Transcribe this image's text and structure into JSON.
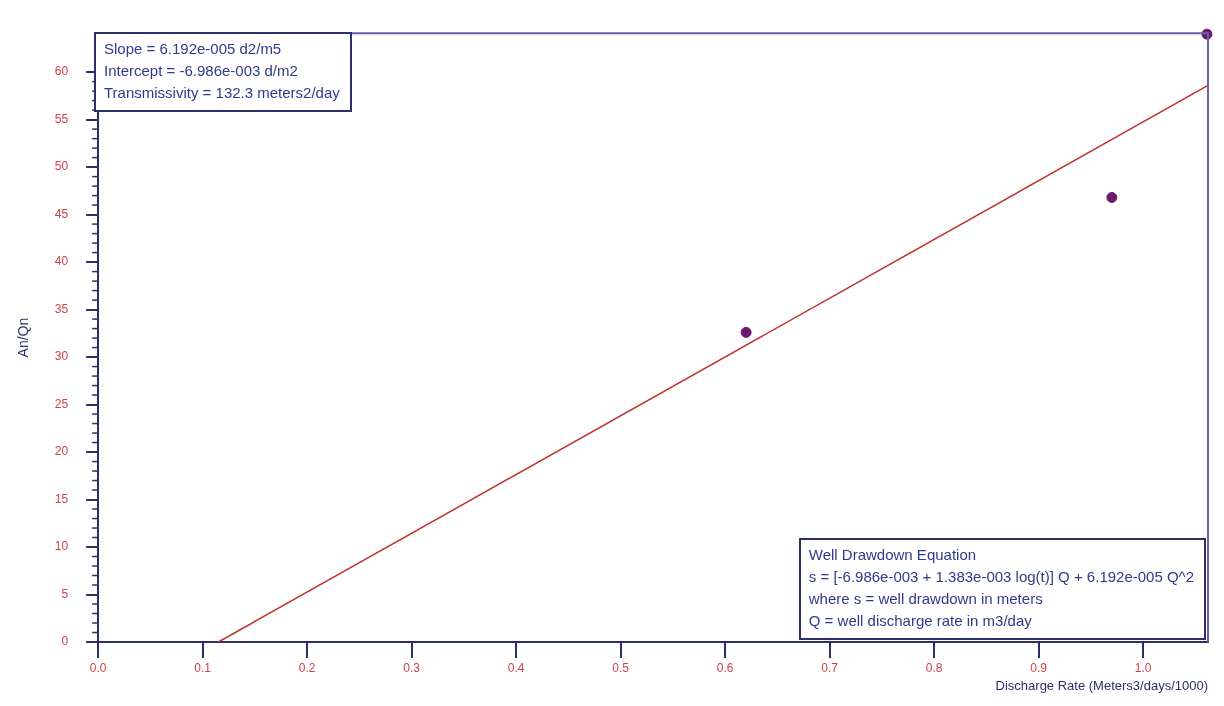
{
  "chart_data": {
    "type": "scatter",
    "xlabel": "Discharge Rate (Meters3/days/1000)",
    "ylabel": "An/Qn",
    "xlim": [
      0,
      1.062
    ],
    "ylim": [
      0,
      64.1
    ],
    "xticks": [
      {
        "value": 0,
        "label": "0.0"
      },
      0.1,
      0.2,
      0.3,
      0.4,
      0.5,
      0.6,
      0.7,
      0.8,
      0.9,
      {
        "value": 1,
        "label": "1.0"
      }
    ],
    "yticks": [
      0,
      5,
      10,
      15,
      20,
      25,
      30,
      35,
      40,
      45,
      50,
      55,
      60
    ],
    "grid": false,
    "legend": false,
    "marker": "circle",
    "series": [
      {
        "color": "#6b1a6b",
        "x": [
          0.62,
          0.97,
          1.061
        ],
        "values": [
          32.6,
          46.8,
          64.0
        ]
      },
      {
        "type": "line",
        "color": "#c0302c",
        "marker": "none",
        "x": [
          0.115,
          1.062
        ],
        "values": [
          0,
          58.6
        ]
      }
    ],
    "annotations": [
      "Slope = 6.192e-005 d2/m5\nIntercept = -6.986e-003 d/m2\nTransmissivity = 132.3 meters2/day",
      "Well Drawdown Equation\ns = [-6.986e-003 + 1.383e-003 log(t)] Q + 6.192e-005 Q^2\nwhere s = well drawdown in meters\nQ = well discharge rate in m3/day"
    ]
  }
}
